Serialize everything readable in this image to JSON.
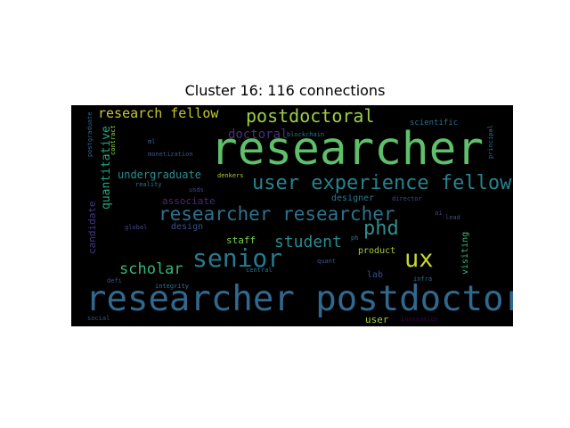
{
  "title": "Cluster 16: 116 connections",
  "words": {
    "researcher_big": {
      "text": "researcher",
      "color": "#5fbf6a"
    },
    "researcher_postdoctoral": {
      "text": "researcher postdoctoral",
      "color": "#31688e"
    },
    "researcher_researcher": {
      "text": "researcher researcher",
      "color": "#2c728e"
    },
    "user_experience_fellow": {
      "text": "user experience fellow",
      "color": "#26838e"
    },
    "senior": {
      "text": "senior",
      "color": "#2a788e"
    },
    "ux": {
      "text": "ux",
      "color": "#c8d72a"
    },
    "phd": {
      "text": "phd",
      "color": "#2c8f8c"
    },
    "student": {
      "text": "student",
      "color": "#2a8a8c"
    },
    "postdoctoral": {
      "text": "postdoctoral",
      "color": "#9ccf40"
    },
    "research_fellow": {
      "text": "research fellow",
      "color": "#c5c92b"
    },
    "scholar": {
      "text": "scholar",
      "color": "#35b779"
    },
    "doctoral": {
      "text": "doctoral",
      "color": "#46327e"
    },
    "undergraduate": {
      "text": "undergraduate",
      "color": "#2c8e8c"
    },
    "quantitative": {
      "text": "quantitative",
      "color": "#22a884"
    },
    "candidate": {
      "text": "candidate",
      "color": "#443a83"
    },
    "associate": {
      "text": "associate",
      "color": "#482878"
    },
    "design": {
      "text": "design",
      "color": "#3b528b"
    },
    "staff": {
      "text": "staff",
      "color": "#7ad151"
    },
    "product": {
      "text": "product",
      "color": "#a5cf39"
    },
    "lab": {
      "text": "lab",
      "color": "#3b528b"
    },
    "user": {
      "text": "user",
      "color": "#a5cf39"
    },
    "visiting": {
      "text": "visiting",
      "color": "#35b779"
    },
    "designer": {
      "text": "designer",
      "color": "#2a788e"
    },
    "scientific": {
      "text": "scientific",
      "color": "#2c728e"
    },
    "director": {
      "text": "director",
      "color": "#3e4a89"
    },
    "lead": {
      "text": "lead",
      "color": "#3e4a89"
    },
    "ai": {
      "text": "ai",
      "color": "#3e4a89"
    },
    "infra": {
      "text": "infra",
      "color": "#2c728e"
    },
    "innovation": {
      "text": "innovation",
      "color": "#440154"
    },
    "principal": {
      "text": "principal",
      "color": "#2c728e"
    },
    "postgraduate": {
      "text": "postgraduate",
      "color": "#31688e"
    },
    "contract": {
      "text": "contract",
      "color": "#8fd744"
    },
    "ml": {
      "text": "ml",
      "color": "#31688e"
    },
    "monetization": {
      "text": "monetization",
      "color": "#3b528b"
    },
    "blockchain": {
      "text": "blockchain",
      "color": "#2a788e"
    },
    "reality": {
      "text": "reality",
      "color": "#2a788e"
    },
    "denkers": {
      "text": "denkers",
      "color": "#a5cf39"
    },
    "usds": {
      "text": "usds",
      "color": "#3e4a89"
    },
    "global": {
      "text": "global",
      "color": "#3e4a89"
    },
    "ph": {
      "text": "ph",
      "color": "#2a788e"
    },
    "quant": {
      "text": "quant",
      "color": "#3b528b"
    },
    "central": {
      "text": "central",
      "color": "#2a788e"
    },
    "defi": {
      "text": "defi",
      "color": "#3b528b"
    },
    "integrity": {
      "text": "integrity",
      "color": "#2a788e"
    },
    "social": {
      "text": "social",
      "color": "#3b528b"
    }
  }
}
